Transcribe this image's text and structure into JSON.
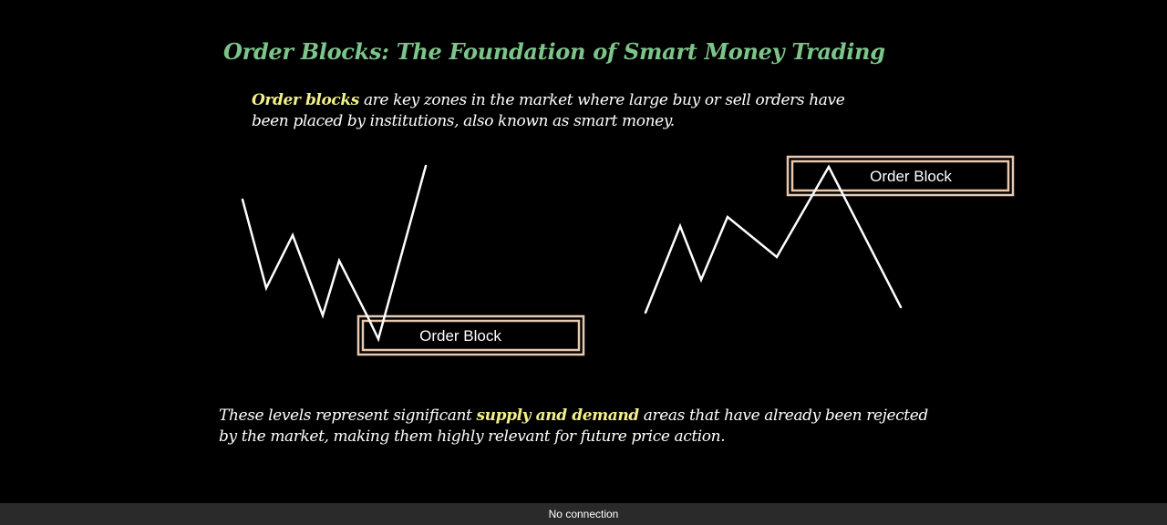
{
  "slide": {
    "title": "Order Blocks: The Foundation of Smart Money Trading",
    "intro": {
      "highlight": "Order blocks",
      "rest_line1": " are key zones in the market where large buy or sell orders have",
      "rest_line2": "been placed by institutions, also known as smart money."
    },
    "diagram": {
      "left_block_label": "Order Block",
      "right_block_label": "Order Block"
    },
    "outro": {
      "before": "These levels represent significant ",
      "highlight": "supply and demand",
      "after_line1": " areas that have already been rejected",
      "after_line2": "by the market, making them highly relevant for future price action."
    }
  },
  "status_bar": {
    "text": "No connection"
  },
  "colors": {
    "background": "#000000",
    "title": "#7cc48a",
    "highlight": "#f3f08a",
    "body_text": "#ffffff",
    "line": "#ffffff",
    "block_border": "#e8c9b0",
    "status_bar_bg": "#2a2a2a",
    "status_text": "#ffffff"
  }
}
